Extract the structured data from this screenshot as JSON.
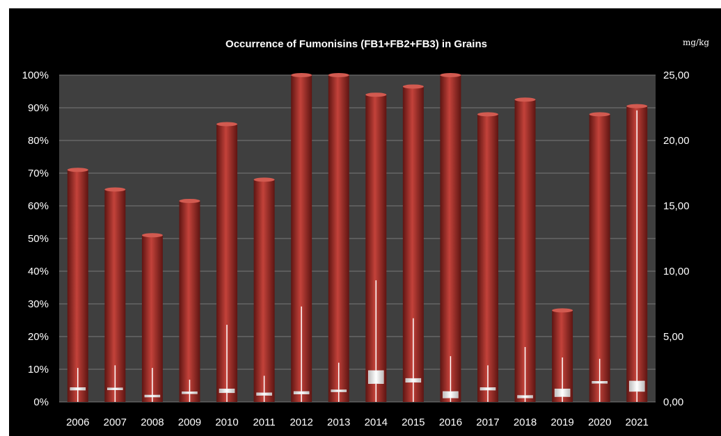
{
  "chart_data": {
    "type": "bar",
    "title": "Occurrence of Fumonisins  (FB1+FB2+FB3)  in Grains",
    "right_axis_unit": "mg/kg",
    "categories": [
      "2006",
      "2007",
      "2008",
      "2009",
      "2010",
      "2011",
      "2012",
      "2013",
      "2014",
      "2015",
      "2016",
      "2017",
      "2018",
      "2019",
      "2020",
      "2021"
    ],
    "ylim_left": [
      0,
      100
    ],
    "ylim_right": [
      0,
      25
    ],
    "y_ticks_left": [
      "0%",
      "10%",
      "20%",
      "30%",
      "40%",
      "50%",
      "60%",
      "70%",
      "80%",
      "90%",
      "100%"
    ],
    "y_ticks_right": [
      "0,00",
      "5,00",
      "10,00",
      "15,00",
      "20,00",
      "25,00"
    ],
    "grid": true,
    "series": [
      {
        "axis": "left",
        "values": [
          71,
          65,
          51,
          61.5,
          85,
          68,
          100,
          100,
          94,
          96.5,
          100,
          88,
          92.5,
          28,
          88,
          90.5
        ]
      },
      {
        "axis": "right",
        "type": "range",
        "min": [
          0.0,
          0.0,
          0.0,
          0.0,
          0.0,
          0.0,
          0.0,
          0.0,
          0.0,
          0.0,
          0.0,
          0.0,
          0.0,
          0.0,
          0.0,
          0.0
        ],
        "max": [
          2.6,
          2.8,
          2.6,
          1.7,
          5.9,
          2.0,
          7.3,
          3.0,
          9.3,
          6.4,
          3.5,
          2.8,
          4.2,
          3.4,
          3.3,
          22.3
        ]
      },
      {
        "axis": "right",
        "type": "box",
        "low": [
          0.9,
          1.0,
          0.4,
          0.7,
          0.7,
          0.5,
          0.6,
          0.8,
          1.4,
          1.5,
          0.3,
          0.9,
          0.3,
          0.4,
          1.5,
          0.8
        ],
        "high": [
          1.1,
          1.0,
          0.5,
          0.7,
          1.0,
          0.7,
          0.8,
          0.9,
          2.4,
          1.8,
          0.8,
          1.1,
          0.5,
          1.0,
          1.5,
          1.6
        ]
      }
    ],
    "colors": {
      "bar": "#9a2a24",
      "plot_background": "#3f3f3f",
      "background": "#000000",
      "marker": "#ffffff",
      "grid": "#7a7a7a"
    }
  }
}
